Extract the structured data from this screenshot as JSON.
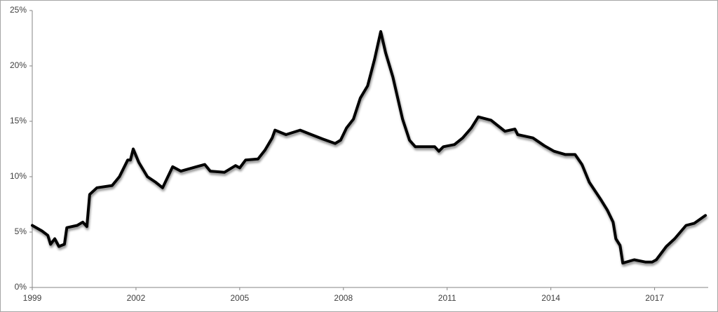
{
  "chart_data": {
    "type": "line",
    "color": "#000000",
    "x": [
      1999.0,
      1999.28,
      1999.45,
      1999.53,
      1999.65,
      1999.77,
      1999.93,
      2000.0,
      2000.3,
      2000.46,
      2000.58,
      2000.66,
      2000.87,
      2001.31,
      2001.52,
      2001.76,
      2001.84,
      2001.92,
      2002.08,
      2002.33,
      2002.57,
      2002.77,
      2003.06,
      2003.3,
      2003.75,
      2003.99,
      2004.15,
      2004.56,
      2004.88,
      2005.0,
      2005.17,
      2005.53,
      2005.73,
      2005.94,
      2006.02,
      2006.34,
      2006.75,
      2006.99,
      2007.4,
      2007.76,
      2007.92,
      2008.09,
      2008.29,
      2008.49,
      2008.7,
      2008.9,
      2009.08,
      2009.22,
      2009.43,
      2009.71,
      2009.91,
      2010.08,
      2010.36,
      2010.64,
      2010.76,
      2010.89,
      2011.21,
      2011.45,
      2011.7,
      2011.9,
      2012.27,
      2012.47,
      2012.67,
      2012.96,
      2013.04,
      2013.48,
      2013.81,
      2014.09,
      2014.42,
      2014.7,
      2014.9,
      2015.11,
      2015.43,
      2015.63,
      2015.8,
      2015.88,
      2016.0,
      2016.08,
      2016.41,
      2016.73,
      2016.93,
      2017.05,
      2017.34,
      2017.58,
      2017.91,
      2018.15,
      2018.47
    ],
    "values": [
      5.6,
      5.1,
      4.7,
      3.9,
      4.4,
      3.7,
      3.9,
      5.4,
      5.6,
      5.9,
      5.5,
      8.4,
      9.0,
      9.2,
      10.0,
      11.5,
      11.5,
      12.5,
      11.3,
      10.0,
      9.5,
      9.0,
      10.9,
      10.5,
      10.9,
      11.1,
      10.5,
      10.4,
      11.0,
      10.8,
      11.5,
      11.6,
      12.4,
      13.5,
      14.2,
      13.8,
      14.2,
      13.9,
      13.4,
      13.0,
      13.3,
      14.4,
      15.2,
      17.1,
      18.2,
      20.6,
      23.1,
      21.2,
      19.0,
      15.2,
      13.3,
      12.7,
      12.7,
      12.7,
      12.3,
      12.7,
      12.9,
      13.5,
      14.4,
      15.4,
      15.1,
      14.6,
      14.1,
      14.3,
      13.8,
      13.5,
      12.8,
      12.3,
      12.0,
      12.0,
      11.1,
      9.5,
      8.0,
      7.0,
      5.9,
      4.4,
      3.8,
      2.2,
      2.5,
      2.3,
      2.3,
      2.5,
      3.7,
      4.4,
      5.6,
      5.8,
      6.5
    ],
    "xlim": [
      1999,
      2018.55
    ],
    "xticks": [
      1999,
      2002,
      2005,
      2008,
      2011,
      2014,
      2017
    ],
    "ylim": [
      0,
      25
    ],
    "yticks": [
      {
        "value": 0,
        "label": "0%"
      },
      {
        "value": 5,
        "label": "5%"
      },
      {
        "value": 10,
        "label": "10%"
      },
      {
        "value": 15,
        "label": "15%"
      },
      {
        "value": 20,
        "label": "20%"
      },
      {
        "value": 25,
        "label": "25%"
      }
    ]
  }
}
